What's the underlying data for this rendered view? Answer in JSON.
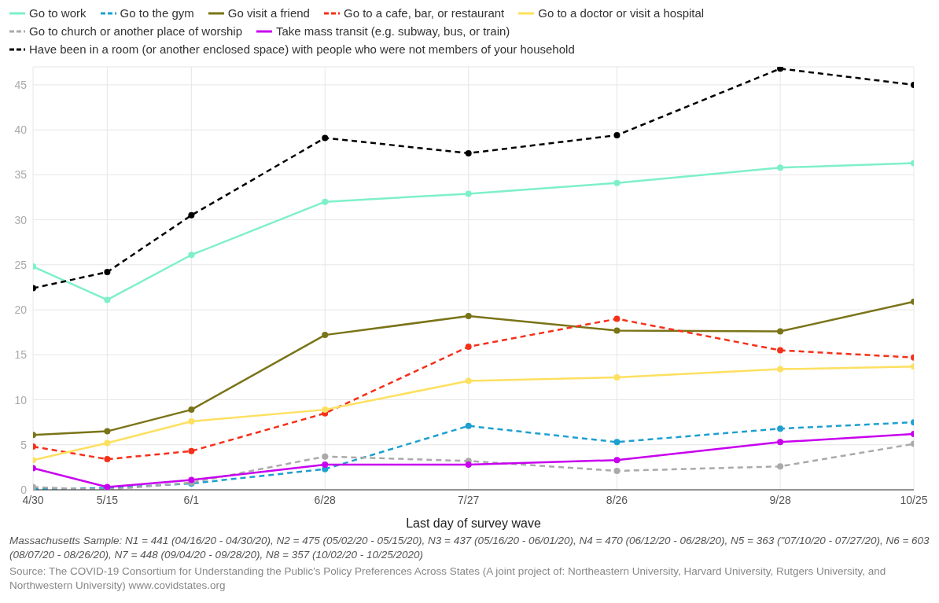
{
  "chart_data": {
    "type": "line",
    "xlabel": "Last day of survey wave",
    "x": [
      "--04-30",
      "--05-15",
      "--06-01",
      "--06-28",
      "--07-27",
      "--08-26",
      "--09-28",
      "--10-25"
    ],
    "xlim": [
      "--04-30",
      "--10-25"
    ],
    "xticks": [
      {
        "value": "--04-30",
        "label": "4/30"
      },
      {
        "value": "--05-15",
        "label": "5/15"
      },
      {
        "value": "--06-01",
        "label": "6/1"
      },
      {
        "value": "--06-28",
        "label": "6/28"
      },
      {
        "value": "--07-27",
        "label": "7/27"
      },
      {
        "value": "--08-26",
        "label": "8/26"
      },
      {
        "value": "--09-28",
        "label": "9/28"
      },
      {
        "value": "--10-25",
        "label": "10/25"
      }
    ],
    "ylim": [
      0,
      47
    ],
    "yticks": [
      0,
      5,
      10,
      15,
      20,
      25,
      30,
      35,
      40,
      45
    ],
    "grid": true,
    "legend": "top",
    "marker": "circle",
    "series": [
      {
        "name": "Go to work",
        "color": "#7ef0c8",
        "line_style": "solid",
        "values": [
          24.8,
          21.1,
          26.1,
          32,
          32.9,
          34.1,
          35.8,
          36.3
        ]
      },
      {
        "name": "Go to the gym",
        "color": "#1da0d0",
        "line_style": "dashed",
        "values": [
          0.1,
          0.2,
          0.7,
          2.3,
          7.1,
          5.3,
          6.8,
          7.5
        ]
      },
      {
        "name": "Go visit a friend",
        "color": "#7a7418",
        "line_style": "solid",
        "values": [
          6.1,
          6.5,
          8.9,
          17.2,
          19.3,
          17.7,
          17.6,
          20.9
        ]
      },
      {
        "name": "Go to a cafe, bar, or restaurant",
        "color": "#f5301a",
        "line_style": "dashed",
        "values": [
          4.8,
          3.4,
          4.3,
          8.5,
          15.9,
          19.0,
          15.5,
          14.7
        ]
      },
      {
        "name": "Go to a doctor or visit a hospital",
        "color": "#fde060",
        "line_style": "solid",
        "values": [
          3.3,
          5.2,
          7.6,
          8.9,
          12.1,
          12.5,
          13.4,
          13.7
        ]
      },
      {
        "name": "Go to church or another place of worship",
        "color": "#aaaaaa",
        "line_style": "dashed",
        "values": [
          0.3,
          0.0,
          0.8,
          3.7,
          3.2,
          2.1,
          2.6,
          5.1
        ]
      },
      {
        "name": "Take mass transit (e.g. subway, bus, or train)",
        "color": "#c800ee",
        "line_style": "solid",
        "values": [
          2.4,
          0.3,
          1.1,
          2.8,
          2.8,
          3.3,
          5.3,
          6.2
        ]
      },
      {
        "name": "Have been in a room (or another enclosed space) with people who were not members of your household",
        "color": "#000000",
        "line_style": "dashed",
        "values": [
          22.4,
          24.2,
          30.5,
          39.1,
          37.4,
          39.4,
          46.8,
          45.0
        ]
      }
    ],
    "annotations": [
      "Massachusetts Sample: N1 = 441 (04/16/20 - 04/30/20), N2 = 475 (05/02/20 - 05/15/20), N3 = 437 (05/16/20 - 06/01/20), N4 = 470 (06/12/20 - 06/28/20), N5 = 363 (\"07/10/20 - 07/27/20), N6 = 603 (08/07/20 - 08/26/20), N7 = 448 (09/04/20 - 09/28/20), N8 = 357 (10/02/20 - 10/25/2020)",
      "Source: The COVID-19 Consortium for Understanding the Public's Policy Preferences Across States (A joint project of: Northeastern University, Harvard University, Rutgers University, and Northwestern University) www.covidstates.org"
    ]
  }
}
